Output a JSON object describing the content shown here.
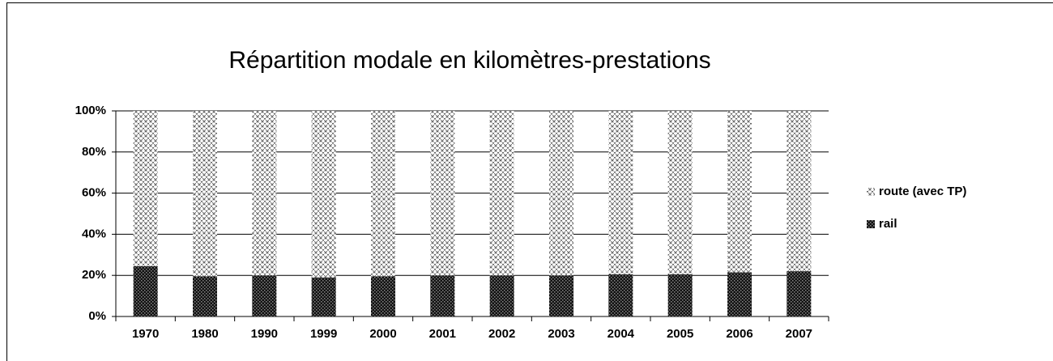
{
  "chart_data": {
    "type": "stacked_bar",
    "title": "Répartition modale en kilomètres-prestations",
    "categories": [
      "1970",
      "1980",
      "1990",
      "1999",
      "2000",
      "2001",
      "2002",
      "2003",
      "2004",
      "2005",
      "2006",
      "2007"
    ],
    "series": [
      {
        "name": "route (avec TP)",
        "color": "#555555",
        "values": [
          75.5,
          80.5,
          80,
          81,
          80.5,
          80,
          80,
          80,
          79.5,
          79.5,
          78.5,
          78
        ]
      },
      {
        "name": "rail",
        "color": "#111111",
        "values": [
          24.5,
          19.5,
          20,
          19,
          19.5,
          20,
          20,
          20,
          20.5,
          20.5,
          21.5,
          22
        ]
      }
    ],
    "ylim": [
      0,
      100
    ],
    "yticks": [
      {
        "value": 0,
        "label": "0%"
      },
      {
        "value": 20,
        "label": "20%"
      },
      {
        "value": 40,
        "label": "40%"
      },
      {
        "value": 60,
        "label": "60%"
      },
      {
        "value": 80,
        "label": "80%"
      },
      {
        "value": 100,
        "label": "100%"
      }
    ],
    "grid": true,
    "legend": "right"
  }
}
